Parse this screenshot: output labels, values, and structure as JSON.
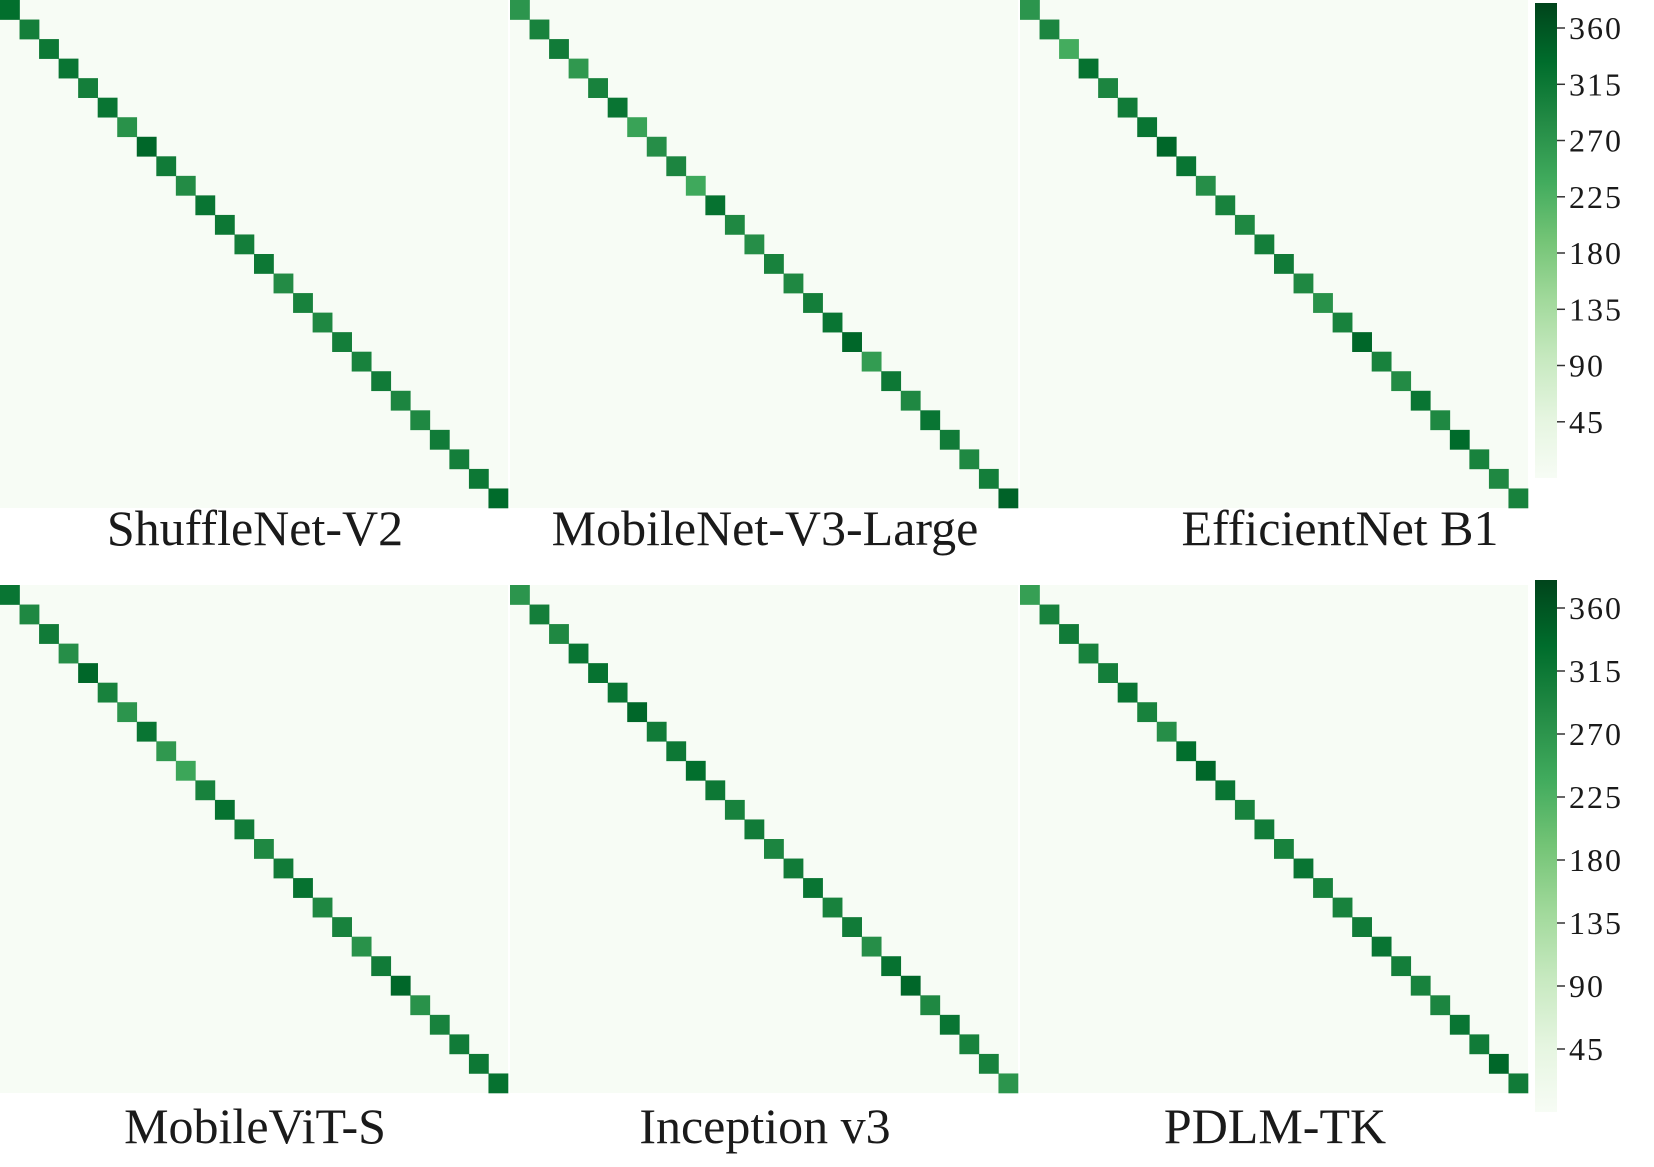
{
  "figure": {
    "colorbar": {
      "ticks": [
        "360",
        "315",
        "270",
        "225",
        "180",
        "135",
        "90",
        "45"
      ],
      "min": 0,
      "max": 380,
      "colors": [
        "#f7fcf5",
        "#e5f5e0",
        "#c7e9c0",
        "#a1d99b",
        "#74c476",
        "#41ab5d",
        "#238b45",
        "#006d2c",
        "#00441b"
      ]
    },
    "background_color": "#f7fcf5"
  },
  "chart_data": [
    {
      "type": "heatmap",
      "title": "ShuffleNet-V2",
      "n_classes": 26,
      "diagonal": [
        330,
        305,
        315,
        320,
        305,
        320,
        275,
        340,
        310,
        285,
        320,
        315,
        305,
        315,
        285,
        300,
        290,
        305,
        300,
        310,
        295,
        290,
        310,
        305,
        315,
        335
      ],
      "off_diagonal_max": 5
    },
    {
      "type": "heatmap",
      "title": "MobileNet-V3-Large",
      "n_classes": 26,
      "diagonal": [
        270,
        300,
        310,
        265,
        300,
        320,
        250,
        280,
        295,
        240,
        325,
        290,
        280,
        300,
        290,
        305,
        320,
        340,
        260,
        315,
        290,
        320,
        310,
        290,
        305,
        345
      ],
      "off_diagonal_max": 5
    },
    {
      "type": "heatmap",
      "title": "EfficientNet B1",
      "n_classes": 26,
      "diagonal": [
        270,
        295,
        235,
        325,
        295,
        310,
        320,
        340,
        320,
        280,
        300,
        290,
        305,
        310,
        290,
        275,
        300,
        340,
        300,
        285,
        320,
        290,
        335,
        300,
        290,
        300
      ],
      "off_diagonal_max": 5
    },
    {
      "type": "heatmap",
      "title": "MobileViT-S",
      "n_classes": 26,
      "diagonal": [
        320,
        290,
        310,
        280,
        340,
        300,
        270,
        320,
        265,
        245,
        300,
        325,
        310,
        290,
        310,
        325,
        290,
        300,
        275,
        310,
        340,
        275,
        300,
        310,
        315,
        325
      ],
      "off_diagonal_max": 5
    },
    {
      "type": "heatmap",
      "title": "Inception v3",
      "n_classes": 26,
      "diagonal": [
        270,
        305,
        290,
        320,
        325,
        320,
        340,
        310,
        315,
        330,
        315,
        300,
        310,
        295,
        310,
        320,
        300,
        310,
        280,
        325,
        340,
        290,
        320,
        300,
        300,
        270
      ],
      "off_diagonal_max": 5
    },
    {
      "type": "heatmap",
      "title": "PDLM-TK",
      "n_classes": 26,
      "diagonal": [
        255,
        300,
        310,
        300,
        305,
        320,
        300,
        280,
        330,
        340,
        320,
        300,
        310,
        300,
        320,
        300,
        300,
        310,
        320,
        305,
        300,
        295,
        320,
        310,
        340,
        310
      ],
      "off_diagonal_max": 5
    }
  ]
}
